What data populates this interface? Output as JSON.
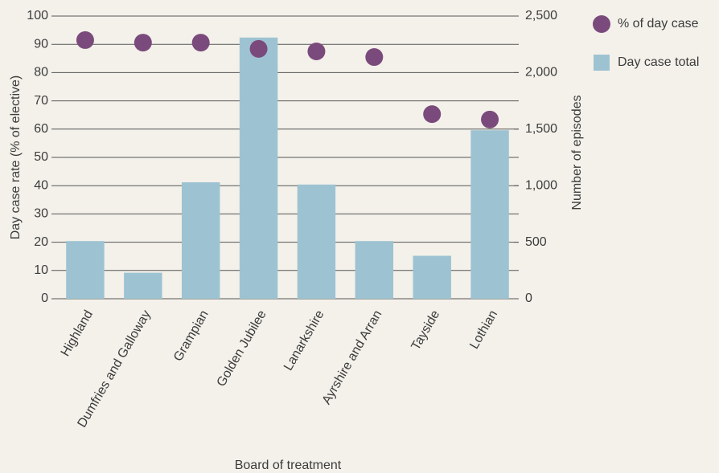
{
  "chart_data": {
    "type": "bar",
    "x_label": "Board of treatment",
    "y_label": "Day case rate (% of elective)",
    "y2_label": "Number of episodes",
    "categories": [
      "Highland",
      "Dumfries and Galloway",
      "Grampian",
      "Golden Jubilee",
      "Lanarkshire",
      "Ayrshire and Arran",
      "Tayside",
      "Lothian"
    ],
    "series": [
      {
        "name": "% of day case",
        "type": "scatter",
        "color": "#7b4a7c",
        "values": [
          91.5,
          90.6,
          90.6,
          88.4,
          87.5,
          85.5,
          65.3,
          63.4
        ]
      },
      {
        "name": "Day case total",
        "type": "bar",
        "axis": "y2",
        "color": "#9dc3d2",
        "values": [
          510,
          230,
          1030,
          2310,
          1010,
          510,
          380,
          1490
        ]
      }
    ],
    "ylim": [
      0,
      100
    ],
    "yticks": [
      0,
      10,
      20,
      30,
      40,
      50,
      60,
      70,
      80,
      90,
      100
    ],
    "y2lim": [
      0,
      2500
    ],
    "y2ticks": [
      0,
      500,
      {
        "value": 1000,
        "label": "1,000"
      },
      {
        "value": 1500,
        "label": "1,500"
      },
      {
        "value": 2000,
        "label": "2,000"
      },
      {
        "value": 2500,
        "label": "2,500"
      }
    ],
    "grid": true,
    "legend": "top-right"
  }
}
